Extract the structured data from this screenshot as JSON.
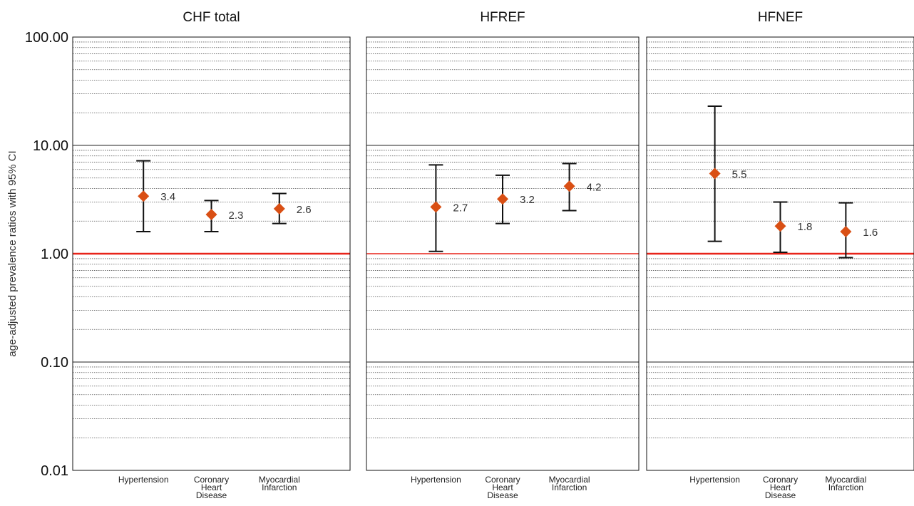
{
  "chart_data": {
    "type": "scatter",
    "ylabel": "age-adjusted prevalence ratios with 95% CI",
    "yscale": "log",
    "ylim": [
      0.01,
      100
    ],
    "yticks": [
      {
        "value": 100,
        "label": "100.00"
      },
      {
        "value": 10,
        "label": "10.00"
      },
      {
        "value": 1,
        "label": "1.00"
      },
      {
        "value": 0.1,
        "label": "0.10"
      },
      {
        "value": 0.01,
        "label": "0.01"
      }
    ],
    "reference_line": {
      "value": 1,
      "color": "#e8241a"
    },
    "grid": "minor dotted, major solid",
    "marker_color": "#d94f14",
    "categories": [
      [
        "Hypertension"
      ],
      [
        "Coronary",
        "Heart",
        "Disease"
      ],
      [
        "Myocardial",
        "Infarction"
      ]
    ],
    "panels": [
      {
        "title": "CHF total",
        "points": [
          {
            "value": 3.4,
            "label": "3.4",
            "ci_low": 1.6,
            "ci_high": 7.2
          },
          {
            "value": 2.3,
            "label": "2.3",
            "ci_low": 1.6,
            "ci_high": 3.1
          },
          {
            "value": 2.6,
            "label": "2.6",
            "ci_low": 1.9,
            "ci_high": 3.6
          }
        ]
      },
      {
        "title": "HFREF",
        "points": [
          {
            "value": 2.7,
            "label": "2.7",
            "ci_low": 1.05,
            "ci_high": 6.6
          },
          {
            "value": 3.2,
            "label": "3.2",
            "ci_low": 1.9,
            "ci_high": 5.3
          },
          {
            "value": 4.2,
            "label": "4.2",
            "ci_low": 2.5,
            "ci_high": 6.8
          }
        ]
      },
      {
        "title": "HFNEF",
        "points": [
          {
            "value": 5.5,
            "label": "5.5",
            "ci_low": 1.3,
            "ci_high": 23
          },
          {
            "value": 1.8,
            "label": "1.8",
            "ci_low": 1.03,
            "ci_high": 3.0
          },
          {
            "value": 1.6,
            "label": "1.6",
            "ci_low": 0.92,
            "ci_high": 2.95
          }
        ]
      }
    ]
  }
}
